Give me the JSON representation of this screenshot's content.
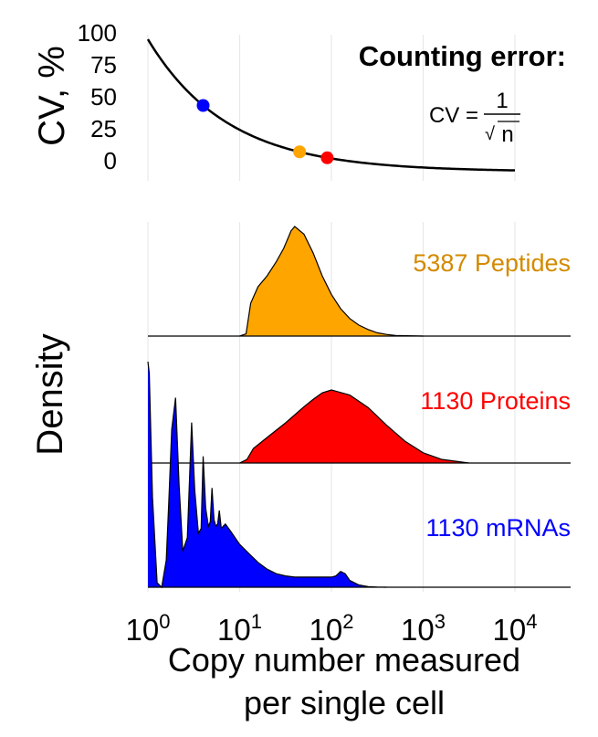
{
  "chart_data": [
    {
      "type": "line",
      "panel": "counting-error",
      "title": "Counting error:",
      "formula": {
        "lhs": "CV =",
        "numerator": "1",
        "denominator": "n",
        "radical": "√"
      },
      "ylabel": "CV, %",
      "y_ticks": [
        "100",
        "75",
        "50",
        "25",
        "0"
      ],
      "ylim": [
        0,
        100
      ],
      "x_scale": "log10",
      "xlim_log10": [
        0,
        4
      ],
      "curve": {
        "function": "100/sqrt(x)",
        "x_min": 1,
        "x_max": 10000
      },
      "highlight_points": [
        {
          "name": "mRNAs",
          "x": 4,
          "y": 50,
          "color": "#0000ff"
        },
        {
          "name": "Peptides",
          "x": 45,
          "y": 15,
          "color": "#ffa500"
        },
        {
          "name": "Proteins",
          "x": 90,
          "y": 10.5,
          "color": "#ff0000"
        }
      ]
    },
    {
      "type": "area",
      "panel": "density-ridges",
      "ylabel": "Density",
      "xlabel_line1": "Copy number measured",
      "xlabel_line2": "per single cell",
      "x_scale": "log10",
      "x_tick_labels": [
        {
          "base": "10",
          "exp": "0",
          "log10": 0
        },
        {
          "base": "10",
          "exp": "1",
          "log10": 1
        },
        {
          "base": "10",
          "exp": "2",
          "log10": 2
        },
        {
          "base": "10",
          "exp": "3",
          "log10": 3
        },
        {
          "base": "10",
          "exp": "4",
          "log10": 4
        }
      ],
      "series": [
        {
          "name": "Peptides",
          "label": "5387 Peptides",
          "color": "#ffa500",
          "label_color": "#d38a00",
          "x_log10": [
            1.0,
            1.07,
            1.12,
            1.2,
            1.3,
            1.4,
            1.48,
            1.53,
            1.56,
            1.6,
            1.7,
            1.8,
            1.9,
            2.0,
            2.1,
            2.2,
            2.3,
            2.4,
            2.5,
            2.6,
            2.7,
            3.0
          ],
          "density": [
            0.0,
            0.02,
            0.3,
            0.45,
            0.55,
            0.68,
            0.8,
            0.9,
            0.96,
            1.0,
            0.93,
            0.76,
            0.55,
            0.38,
            0.25,
            0.16,
            0.1,
            0.06,
            0.03,
            0.015,
            0.005,
            0.0
          ]
        },
        {
          "name": "Proteins",
          "label": "1130 Proteins",
          "color": "#ff0000",
          "label_color": "#ff0000",
          "x_log10": [
            1.0,
            1.08,
            1.15,
            1.3,
            1.5,
            1.7,
            1.8,
            1.9,
            2.0,
            2.2,
            2.4,
            2.6,
            2.8,
            3.0,
            3.2,
            3.5
          ],
          "density": [
            0.0,
            0.05,
            0.2,
            0.35,
            0.55,
            0.77,
            0.87,
            0.96,
            1.0,
            0.93,
            0.76,
            0.52,
            0.3,
            0.14,
            0.05,
            0.0
          ]
        },
        {
          "name": "mRNAs",
          "label": "1130 mRNAs",
          "color": "#0000ff",
          "label_color": "#0000ff",
          "x_log10": [
            0.0,
            0.015,
            0.05,
            0.1,
            0.15,
            0.2,
            0.23,
            0.26,
            0.301,
            0.34,
            0.38,
            0.43,
            0.477,
            0.51,
            0.55,
            0.58,
            0.602,
            0.63,
            0.66,
            0.68,
            0.699,
            0.72,
            0.74,
            0.76,
            0.778,
            0.8,
            0.82,
            0.845,
            0.9,
            1.0,
            1.1,
            1.2,
            1.3,
            1.4,
            1.5,
            1.6,
            1.7,
            1.8,
            1.9,
            2.0,
            2.05,
            2.1,
            2.15,
            2.2,
            2.3,
            2.4,
            2.5,
            2.6
          ],
          "density": [
            1.0,
            0.95,
            0.4,
            0.02,
            0.0,
            0.12,
            0.4,
            0.7,
            0.84,
            0.45,
            0.16,
            0.22,
            0.73,
            0.43,
            0.24,
            0.26,
            0.58,
            0.35,
            0.27,
            0.29,
            0.44,
            0.3,
            0.27,
            0.28,
            0.34,
            0.26,
            0.27,
            0.28,
            0.25,
            0.19,
            0.15,
            0.11,
            0.08,
            0.06,
            0.05,
            0.045,
            0.045,
            0.045,
            0.045,
            0.045,
            0.05,
            0.07,
            0.06,
            0.03,
            0.01,
            0.003,
            0.001,
            0.0
          ]
        }
      ]
    }
  ]
}
